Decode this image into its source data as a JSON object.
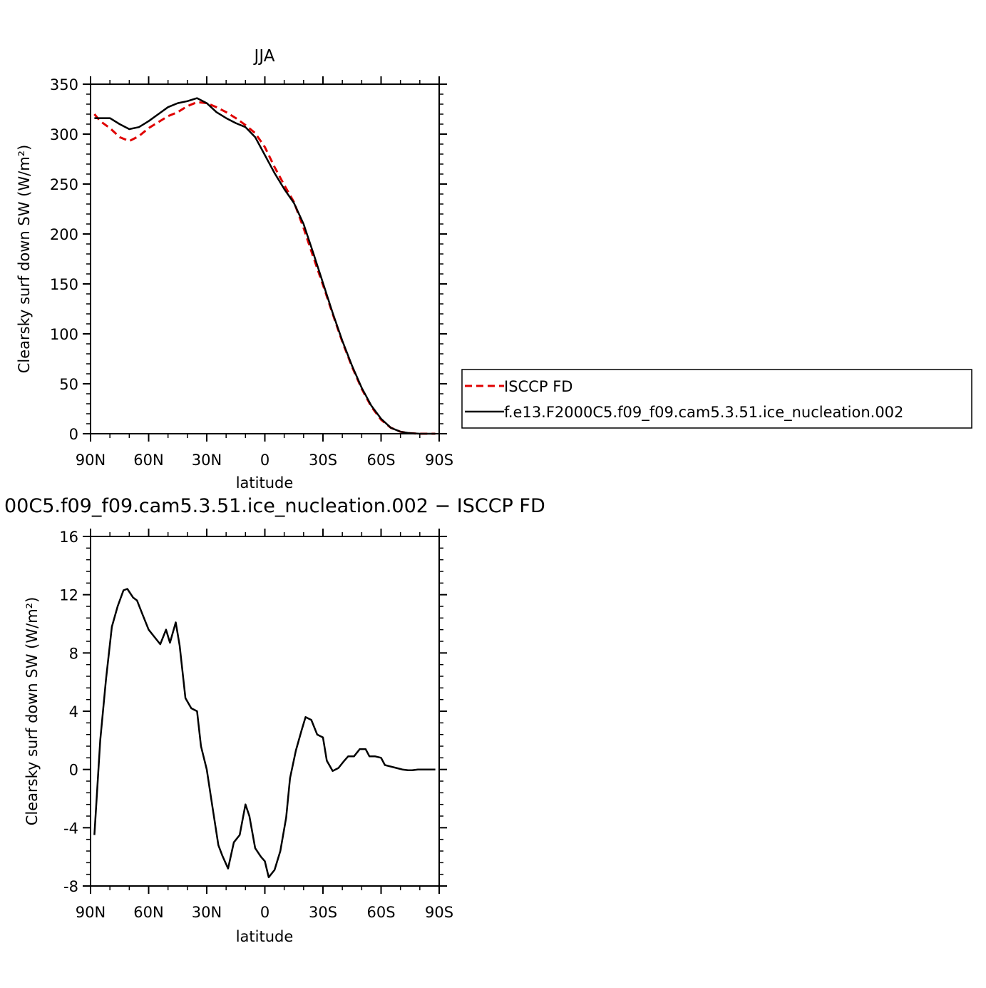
{
  "chart_data": [
    {
      "type": "line",
      "title": "JJA",
      "xlabel": "latitude",
      "ylabel": "Clearsky surf down SW (W/m²)",
      "xlim": [
        90,
        -90
      ],
      "ylim": [
        0,
        350
      ],
      "x_ticks": [
        {
          "value": 90,
          "label": "90N"
        },
        {
          "value": 60,
          "label": "60N"
        },
        {
          "value": 30,
          "label": "30N"
        },
        {
          "value": 0,
          "label": "0"
        },
        {
          "value": -30,
          "label": "30S"
        },
        {
          "value": -60,
          "label": "60S"
        },
        {
          "value": -90,
          "label": "90S"
        }
      ],
      "y_ticks": [
        0,
        50,
        100,
        150,
        200,
        250,
        300,
        350
      ],
      "legend_placement": "right",
      "series": [
        {
          "name": "ISCCP FD",
          "color": "#e00000",
          "dash": "dashed",
          "x": [
            88,
            85,
            80,
            75,
            70,
            65,
            60,
            55,
            50,
            45,
            40,
            35,
            30,
            25,
            20,
            15,
            10,
            5,
            0,
            -5,
            -10,
            -15,
            -20,
            -25,
            -30,
            -35,
            -40,
            -45,
            -50,
            -55,
            -60,
            -65,
            -70,
            -75,
            -80,
            -85,
            -88
          ],
          "y": [
            320,
            313,
            306,
            297,
            293,
            298,
            306,
            312,
            318,
            322,
            328,
            332,
            331,
            327,
            322,
            316,
            309,
            301,
            287,
            267,
            249,
            232,
            206,
            177,
            149,
            120,
            92,
            67,
            45,
            27,
            14,
            6,
            2,
            0.5,
            0,
            0,
            0
          ]
        },
        {
          "name": "f.e13.F2000C5.f09_f09.cam5.3.51.ice_nucleation.002",
          "color": "#000000",
          "dash": "solid",
          "x": [
            88,
            85,
            80,
            75,
            70,
            65,
            60,
            55,
            50,
            45,
            40,
            35,
            30,
            25,
            20,
            15,
            10,
            5,
            0,
            -5,
            -10,
            -15,
            -20,
            -25,
            -30,
            -35,
            -40,
            -45,
            -50,
            -55,
            -60,
            -65,
            -70,
            -75,
            -80,
            -85,
            -88
          ],
          "y": [
            316,
            316,
            316,
            310,
            305,
            307,
            313,
            320,
            327,
            331,
            333,
            336,
            331,
            322,
            316,
            311,
            307,
            297,
            279,
            261,
            245,
            231,
            210,
            181,
            151,
            121,
            93,
            68,
            46,
            28,
            15,
            6,
            2,
            0.5,
            0,
            0,
            0
          ]
        }
      ]
    },
    {
      "type": "line",
      "title": "00C5.f09_f09.cam5.3.51.ice_nucleation.002 − ISCCP FD",
      "xlabel": "latitude",
      "ylabel": "Clearsky surf down SW (W/m²)",
      "xlim": [
        90,
        -90
      ],
      "ylim": [
        -8,
        16
      ],
      "x_ticks": [
        {
          "value": 90,
          "label": "90N"
        },
        {
          "value": 60,
          "label": "60N"
        },
        {
          "value": 30,
          "label": "30N"
        },
        {
          "value": 0,
          "label": "0"
        },
        {
          "value": -30,
          "label": "30S"
        },
        {
          "value": -60,
          "label": "60S"
        },
        {
          "value": -90,
          "label": "90S"
        }
      ],
      "y_ticks": [
        -8,
        -4,
        0,
        4,
        8,
        12,
        16
      ],
      "series": [
        {
          "color": "#000000",
          "dash": "solid",
          "x": [
            88,
            85,
            82,
            79,
            76,
            73,
            71,
            68,
            66,
            63,
            60,
            57,
            54,
            51,
            49,
            46,
            44,
            41,
            38,
            35,
            33,
            30,
            27,
            24,
            22,
            19,
            16,
            13,
            10,
            8,
            5,
            2,
            0,
            -2,
            -5,
            -8,
            -11,
            -13,
            -16,
            -19,
            -21,
            -24,
            -27,
            -30,
            -32,
            -35,
            -38,
            -41,
            -43,
            -46,
            -49,
            -52,
            -54,
            -57,
            -60,
            -62,
            -65,
            -68,
            -71,
            -74,
            -76,
            -79,
            -82,
            -85,
            -88
          ],
          "y": [
            -4.5,
            2,
            6.2,
            9.8,
            11.2,
            12.3,
            12.4,
            11.8,
            11.6,
            10.6,
            9.6,
            9.1,
            8.6,
            9.6,
            8.7,
            10.1,
            8.5,
            4.9,
            4.2,
            4.0,
            1.6,
            0,
            -2.6,
            -5.2,
            -5.9,
            -6.8,
            -5,
            -4.5,
            -2.4,
            -3.2,
            -5.4,
            -6,
            -6.3,
            -7.4,
            -6.9,
            -5.6,
            -3.3,
            -0.6,
            1.3,
            2.7,
            3.6,
            3.4,
            2.4,
            2.2,
            0.6,
            -0.1,
            0.1,
            0.6,
            0.9,
            0.9,
            1.4,
            1.4,
            0.9,
            0.9,
            0.8,
            0.3,
            0.2,
            0.1,
            0.0,
            -0.05,
            -0.05,
            0.0,
            0.0,
            0.0,
            0.0
          ]
        }
      ]
    }
  ]
}
